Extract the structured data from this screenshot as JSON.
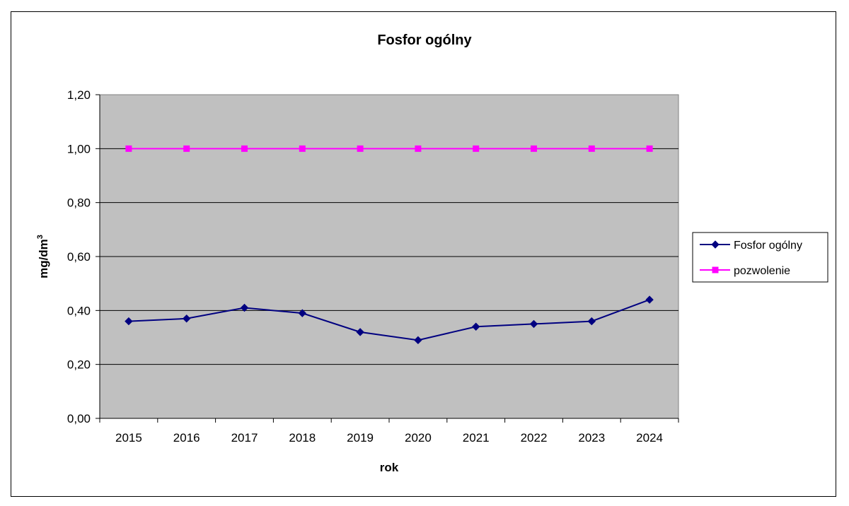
{
  "chart_data": {
    "type": "line",
    "title": "Fosfor ogólny",
    "xlabel": "rok",
    "ylabel": "mg/dm",
    "ylabel_superscript": "3",
    "categories": [
      "2015",
      "2016",
      "2017",
      "2018",
      "2019",
      "2020",
      "2021",
      "2022",
      "2023",
      "2024"
    ],
    "ylim": [
      0,
      1.2
    ],
    "yticks": [
      "0,00",
      "0,20",
      "0,40",
      "0,60",
      "0,80",
      "1,00",
      "1,20"
    ],
    "ytick_values": [
      0,
      0.2,
      0.4,
      0.6,
      0.8,
      1.0,
      1.2
    ],
    "grid": true,
    "legend_position": "right",
    "plot_background": "#c0c0c0",
    "series": [
      {
        "name": "Fosfor ogólny",
        "color": "#000080",
        "marker": "diamond",
        "values": [
          0.36,
          0.37,
          0.41,
          0.39,
          0.32,
          0.29,
          0.34,
          0.35,
          0.36,
          0.44
        ]
      },
      {
        "name": "pozwolenie",
        "color": "#ff00ff",
        "marker": "square",
        "values": [
          1.0,
          1.0,
          1.0,
          1.0,
          1.0,
          1.0,
          1.0,
          1.0,
          1.0,
          1.0
        ]
      }
    ]
  }
}
